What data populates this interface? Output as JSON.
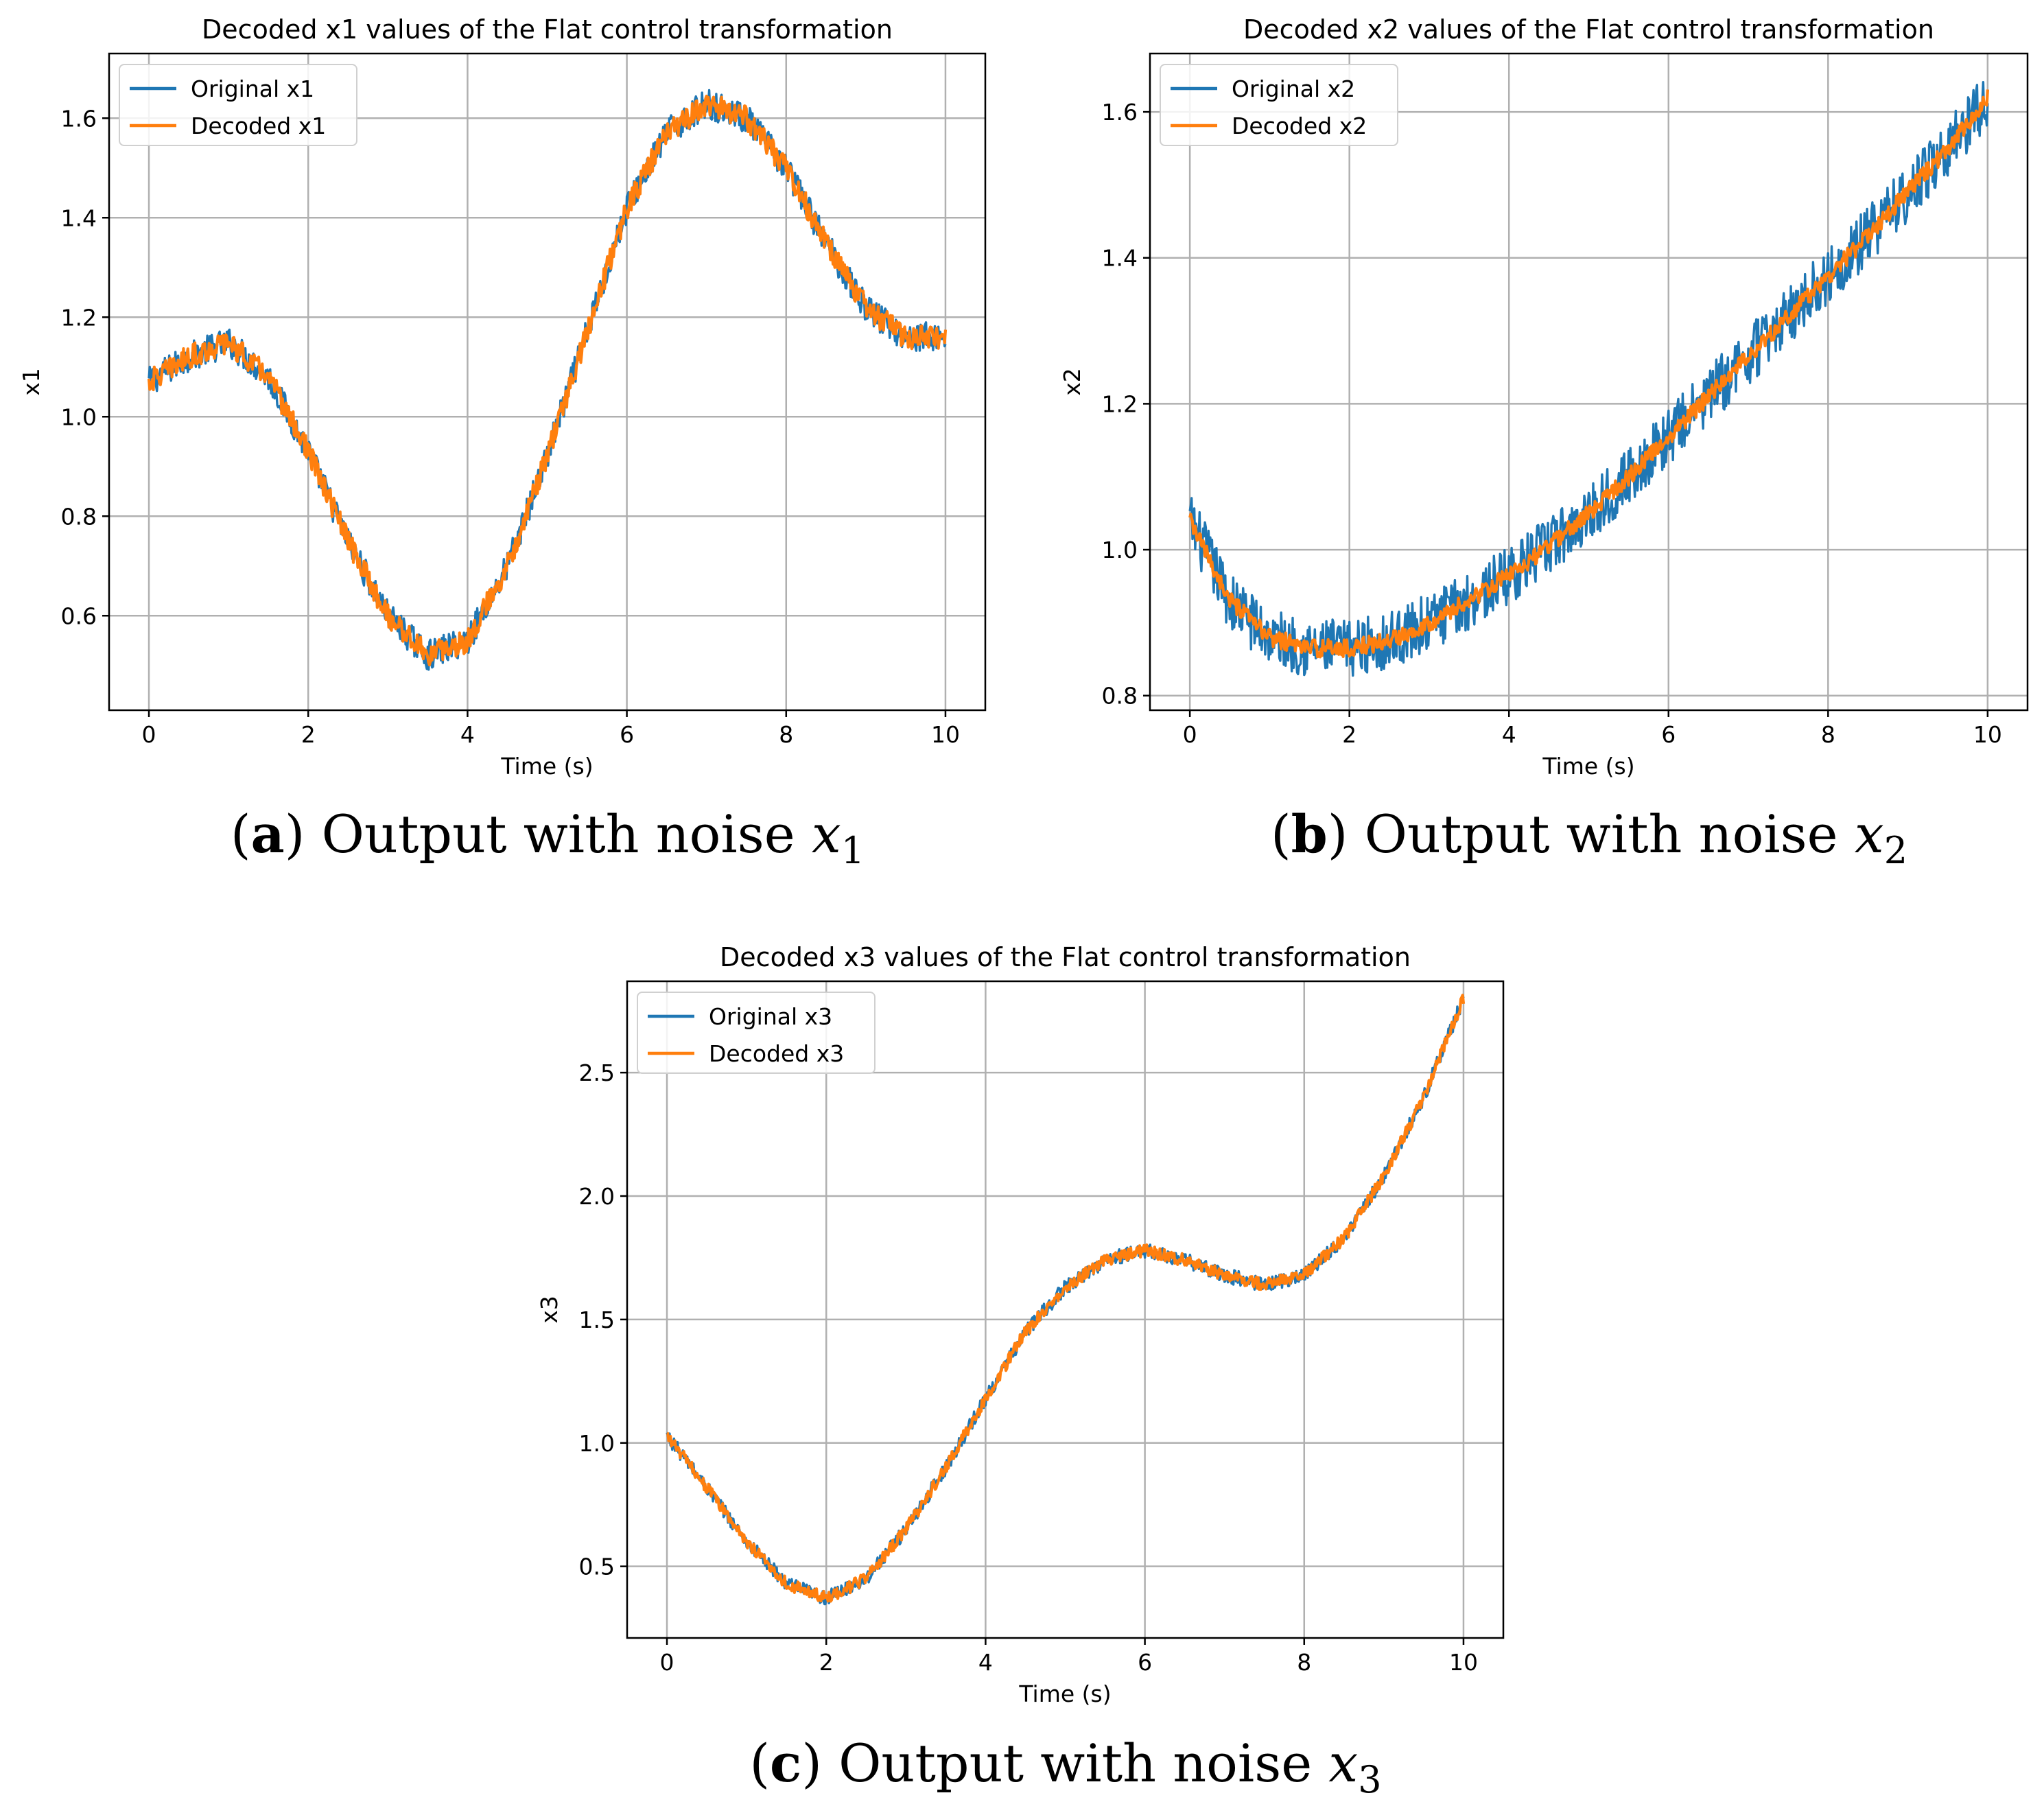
{
  "chart_data": [
    {
      "id": "a",
      "type": "line",
      "title": "Decoded x1 values of the Flat control transformation",
      "xlabel": "Time (s)",
      "ylabel": "x1",
      "xlim": [
        -0.5,
        10.5
      ],
      "ylim": [
        0.41,
        1.73
      ],
      "xticks": [
        0,
        2,
        4,
        6,
        8,
        10
      ],
      "xtick_labels": [
        "0",
        "2",
        "4",
        "6",
        "8",
        "10"
      ],
      "yticks": [
        0.6,
        0.8,
        1.0,
        1.2,
        1.4,
        1.6
      ],
      "ytick_labels": [
        "0.6",
        "0.8",
        "1.0",
        "1.2",
        "1.4",
        "1.6"
      ],
      "grid": true,
      "legend_location": "upper-left",
      "series": [
        {
          "name": "Original x1",
          "color": "#1f77b4",
          "noise": 0.03,
          "x": [
            0,
            0.5,
            1,
            1.5,
            2,
            2.5,
            3,
            3.5,
            4,
            4.5,
            5,
            5.5,
            6,
            6.5,
            7,
            7.5,
            8,
            8.5,
            9,
            9.5,
            10
          ],
          "values": [
            1.07,
            1.12,
            1.15,
            1.08,
            0.93,
            0.75,
            0.6,
            0.52,
            0.55,
            0.7,
            0.92,
            1.17,
            1.42,
            1.57,
            1.63,
            1.6,
            1.5,
            1.35,
            1.22,
            1.16,
            1.16
          ]
        },
        {
          "name": "Decoded x1",
          "color": "#ff7f0e",
          "noise": 0.024,
          "x": [
            0,
            0.5,
            1,
            1.5,
            2,
            2.5,
            3,
            3.5,
            4,
            4.5,
            5,
            5.5,
            6,
            6.5,
            7,
            7.5,
            8,
            8.5,
            9,
            9.5,
            10
          ],
          "values": [
            1.07,
            1.12,
            1.15,
            1.08,
            0.93,
            0.75,
            0.6,
            0.52,
            0.55,
            0.7,
            0.92,
            1.17,
            1.42,
            1.57,
            1.63,
            1.6,
            1.5,
            1.35,
            1.22,
            1.16,
            1.16
          ]
        }
      ],
      "caption": {
        "letter": "a",
        "text": " Output with noise ",
        "variable": "x",
        "subscript": "1"
      }
    },
    {
      "id": "b",
      "type": "line",
      "title": "Decoded x2 values of the Flat control transformation",
      "xlabel": "Time (s)",
      "ylabel": "x2",
      "xlim": [
        -0.5,
        10.5
      ],
      "ylim": [
        0.78,
        1.68
      ],
      "xticks": [
        0,
        2,
        4,
        6,
        8,
        10
      ],
      "xtick_labels": [
        "0",
        "2",
        "4",
        "6",
        "8",
        "10"
      ],
      "yticks": [
        0.8,
        1.0,
        1.2,
        1.4,
        1.6
      ],
      "ytick_labels": [
        "0.8",
        "1.0",
        "1.2",
        "1.4",
        "1.6"
      ],
      "grid": true,
      "legend_location": "upper-left",
      "series": [
        {
          "name": "Original x2",
          "color": "#1f77b4",
          "noise": 0.04,
          "x": [
            0,
            0.5,
            1,
            1.5,
            2,
            2.5,
            3,
            3.5,
            4,
            4.5,
            5,
            5.5,
            6,
            6.5,
            7,
            7.5,
            8,
            8.5,
            9,
            9.5,
            10
          ],
          "values": [
            1.04,
            0.93,
            0.88,
            0.865,
            0.865,
            0.875,
            0.9,
            0.93,
            0.965,
            1.005,
            1.05,
            1.1,
            1.155,
            1.21,
            1.265,
            1.32,
            1.375,
            1.43,
            1.49,
            1.55,
            1.62
          ]
        },
        {
          "name": "Decoded x2",
          "color": "#ff7f0e",
          "noise": 0.012,
          "x": [
            0,
            0.5,
            1,
            1.5,
            2,
            2.5,
            3,
            3.5,
            4,
            4.5,
            5,
            5.5,
            6,
            6.5,
            7,
            7.5,
            8,
            8.5,
            9,
            9.5,
            10
          ],
          "values": [
            1.04,
            0.93,
            0.88,
            0.865,
            0.865,
            0.875,
            0.9,
            0.93,
            0.965,
            1.005,
            1.05,
            1.1,
            1.155,
            1.21,
            1.265,
            1.32,
            1.375,
            1.43,
            1.49,
            1.55,
            1.62
          ]
        }
      ],
      "caption": {
        "letter": "b",
        "text": " Output with noise ",
        "variable": "x",
        "subscript": "2"
      }
    },
    {
      "id": "c",
      "type": "line",
      "title": "Decoded x3 values of the Flat control transformation",
      "xlabel": "Time (s)",
      "ylabel": "x3",
      "xlim": [
        -0.5,
        10.5
      ],
      "ylim": [
        0.21,
        2.87
      ],
      "xticks": [
        0,
        2,
        4,
        6,
        8,
        10
      ],
      "xtick_labels": [
        "0",
        "2",
        "4",
        "6",
        "8",
        "10"
      ],
      "yticks": [
        0.5,
        1.0,
        1.5,
        2.0,
        2.5
      ],
      "ytick_labels": [
        "0.5",
        "1.0",
        "1.5",
        "2.0",
        "2.5"
      ],
      "grid": true,
      "legend_location": "upper-left",
      "series": [
        {
          "name": "Original x3",
          "color": "#1f77b4",
          "noise": 0.03,
          "x": [
            0,
            0.5,
            1,
            1.5,
            2,
            2.5,
            3,
            3.5,
            4,
            4.5,
            5,
            5.5,
            6,
            6.5,
            7,
            7.5,
            8,
            8.5,
            9,
            9.5,
            10
          ],
          "values": [
            1.03,
            0.82,
            0.6,
            0.43,
            0.37,
            0.45,
            0.65,
            0.9,
            1.18,
            1.45,
            1.63,
            1.74,
            1.78,
            1.74,
            1.68,
            1.64,
            1.68,
            1.83,
            2.08,
            2.4,
            2.8
          ]
        },
        {
          "name": "Decoded x3",
          "color": "#ff7f0e",
          "noise": 0.025,
          "x": [
            0,
            0.5,
            1,
            1.5,
            2,
            2.5,
            3,
            3.5,
            4,
            4.5,
            5,
            5.5,
            6,
            6.5,
            7,
            7.5,
            8,
            8.5,
            9,
            9.5,
            10
          ],
          "values": [
            1.03,
            0.82,
            0.6,
            0.43,
            0.37,
            0.45,
            0.65,
            0.9,
            1.18,
            1.45,
            1.63,
            1.74,
            1.78,
            1.74,
            1.68,
            1.64,
            1.68,
            1.83,
            2.08,
            2.4,
            2.8
          ]
        }
      ],
      "caption": {
        "letter": "c",
        "text": " Output with noise ",
        "variable": "x",
        "subscript": "3"
      }
    }
  ]
}
